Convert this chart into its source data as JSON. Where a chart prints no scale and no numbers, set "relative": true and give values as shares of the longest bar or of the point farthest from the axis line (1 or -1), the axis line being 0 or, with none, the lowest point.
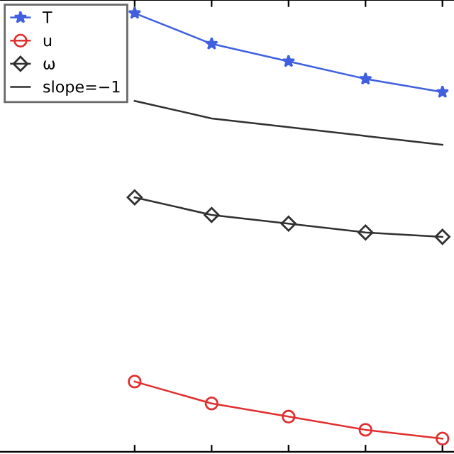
{
  "chart_data": {
    "type": "line",
    "relative": true,
    "legend": "top left",
    "grid": false,
    "categories": [
      null,
      null,
      null,
      null,
      null
    ],
    "series": [
      {
        "name": "T",
        "color": "#4060e0",
        "marker": "star",
        "values": [
          1.0,
          0.93,
          0.89,
          0.85,
          0.82
        ]
      },
      {
        "name": "u",
        "color": "#e03030",
        "marker": "circle",
        "values": [
          0.16,
          0.11,
          0.08,
          0.05,
          0.03
        ]
      },
      {
        "name": "ω",
        "color": "#303030",
        "marker": "diamond",
        "values": [
          0.58,
          0.54,
          0.52,
          0.5,
          0.49
        ]
      },
      {
        "name": "slope=−1",
        "color": "#303030",
        "marker": "none",
        "values": [
          0.8,
          0.76,
          0.74,
          0.72,
          0.7
        ]
      }
    ]
  }
}
